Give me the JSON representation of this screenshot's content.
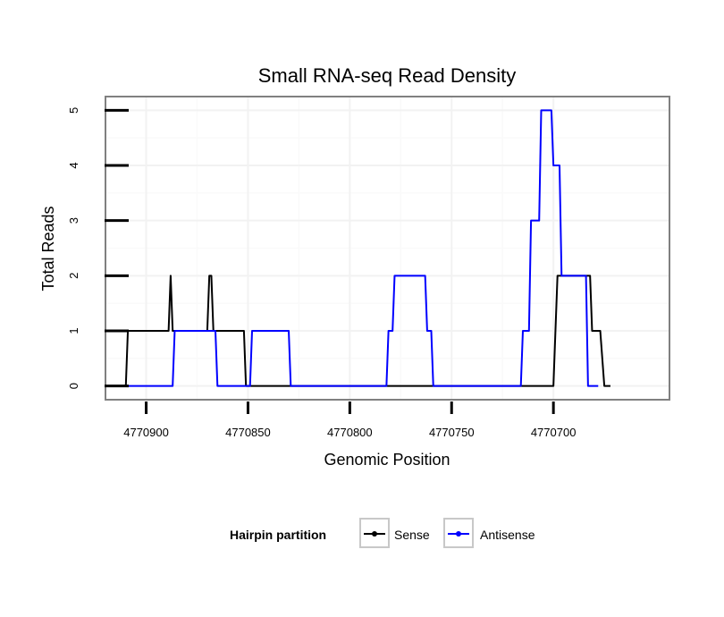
{
  "chart_data": {
    "type": "line",
    "title": "Small RNA-seq Read Density",
    "xlabel": "Genomic Position",
    "ylabel": "Total Reads",
    "xlim": [
      4770920,
      4770643
    ],
    "ylim": [
      -0.25,
      5.25
    ],
    "x_reversed": true,
    "x_ticks": [
      4770900,
      4770850,
      4770800,
      4770750,
      4770700
    ],
    "x_tick_labels": [
      "4770900",
      "4770850",
      "4770800",
      "4770750",
      "4770700"
    ],
    "y_ticks": [
      0,
      1,
      2,
      3,
      4,
      5
    ],
    "y_tick_labels": [
      "0",
      "1",
      "2",
      "3",
      "4",
      "5"
    ],
    "grid": true,
    "legend": {
      "title": "Hairpin partition",
      "position": "bottom",
      "entries": [
        "Sense",
        "Antisense"
      ]
    },
    "series": [
      {
        "name": "Sense",
        "color": "#000000",
        "points": [
          [
            4770913,
            0
          ],
          [
            4770910,
            0
          ],
          [
            4770909,
            1
          ],
          [
            4770889,
            1
          ],
          [
            4770888,
            2
          ],
          [
            4770887,
            1
          ],
          [
            4770870,
            1
          ],
          [
            4770869,
            2
          ],
          [
            4770868,
            2
          ],
          [
            4770867,
            1
          ],
          [
            4770852,
            1
          ],
          [
            4770851,
            0
          ],
          [
            4770700,
            0
          ],
          [
            4770699,
            1
          ],
          [
            4770698,
            2
          ],
          [
            4770682,
            2
          ],
          [
            4770681,
            1
          ],
          [
            4770677,
            1
          ],
          [
            4770675,
            0
          ],
          [
            4770672,
            0
          ]
        ]
      },
      {
        "name": "Antisense",
        "color": "#0000ff",
        "points": [
          [
            4770910,
            0
          ],
          [
            4770887,
            0
          ],
          [
            4770886,
            1
          ],
          [
            4770866,
            1
          ],
          [
            4770865,
            0
          ],
          [
            4770849,
            0
          ],
          [
            4770848,
            1
          ],
          [
            4770830,
            1
          ],
          [
            4770829,
            0
          ],
          [
            4770782,
            0
          ],
          [
            4770781,
            1
          ],
          [
            4770779,
            1
          ],
          [
            4770778,
            2
          ],
          [
            4770763,
            2
          ],
          [
            4770762,
            1
          ],
          [
            4770760,
            1
          ],
          [
            4770759,
            0
          ],
          [
            4770716,
            0
          ],
          [
            4770715,
            1
          ],
          [
            4770712,
            1
          ],
          [
            4770711,
            3
          ],
          [
            4770707,
            3
          ],
          [
            4770706,
            5
          ],
          [
            4770701,
            5
          ],
          [
            4770700,
            4
          ],
          [
            4770697,
            4
          ],
          [
            4770696,
            2
          ],
          [
            4770684,
            2
          ],
          [
            4770683,
            0
          ],
          [
            4770678,
            0
          ]
        ]
      }
    ]
  }
}
